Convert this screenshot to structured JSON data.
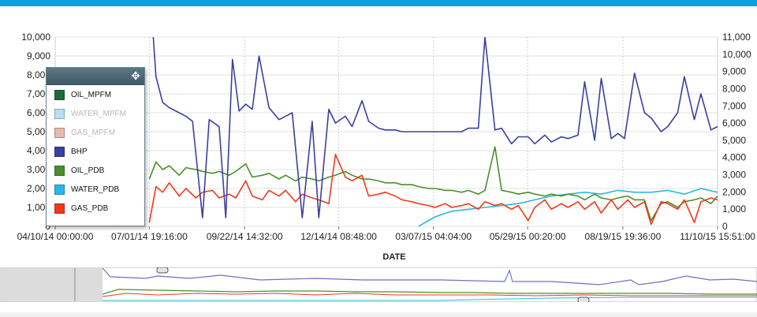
{
  "chart_data": {
    "type": "line",
    "xlabel": "DATE",
    "x_ticks": [
      "04/10/14 00:00:00",
      "07/01/14 19:16:00",
      "09/22/14 14:32:00",
      "12/14/14 08:48:00",
      "03/07/15 04:04:00",
      "05/29/15 00:20:00",
      "08/19/15 19:36:00",
      "11/10/15 15:51:00"
    ],
    "y_left": {
      "ylim": [
        0,
        10000
      ],
      "ticks": [
        "0",
        "1,000",
        "2,000",
        "3,000",
        "4,000",
        "5,000",
        "6,000",
        "7,000",
        "8,000",
        "9,000",
        "10,000"
      ]
    },
    "y_right": {
      "ylim": [
        0,
        11000
      ],
      "ticks": [
        "0",
        "1,000",
        "2,000",
        "3,000",
        "4,000",
        "5,000",
        "6,000",
        "7,000",
        "8,000",
        "9,000",
        "10,000",
        "11,000"
      ]
    },
    "grid": true,
    "legend": {
      "placement": "top-left",
      "items": [
        {
          "name": "OIL_MPFM",
          "color": "#1e6b3a",
          "enabled": true
        },
        {
          "name": "WATER_MPFM",
          "color": "#b7dff2",
          "enabled": false
        },
        {
          "name": "GAS_MPFM",
          "color": "#e8b9b0",
          "enabled": false
        },
        {
          "name": "BHP",
          "color": "#3b3fa0",
          "enabled": true
        },
        {
          "name": "OIL_PDB",
          "color": "#4a8f2a",
          "enabled": true
        },
        {
          "name": "WATER_PDB",
          "color": "#2bb6e6",
          "enabled": true
        },
        {
          "name": "GAS_PDB",
          "color": "#ee3a1c",
          "enabled": true
        }
      ]
    },
    "series": [
      {
        "name": "BHP",
        "axis": "right",
        "color": "#3b3fa0",
        "x": [
          0.39,
          0.4,
          0.41,
          0.43,
          0.45,
          0.5,
          0.52,
          0.55,
          0.57,
          0.6,
          0.62,
          0.64,
          0.66,
          0.68,
          0.7,
          0.72,
          0.75,
          0.78,
          0.8,
          0.82,
          0.85,
          0.88,
          0.9,
          0.93,
          0.95,
          0.98,
          1.0,
          1.03,
          1.05,
          1.08,
          1.1,
          1.13,
          1.15,
          1.18,
          1.2,
          1.22,
          1.25,
          1.28,
          1.3,
          1.33,
          1.35,
          1.38,
          1.4,
          1.43,
          1.45,
          1.48,
          1.5,
          1.53,
          1.55,
          1.58,
          1.6,
          1.63,
          1.65,
          1.68,
          1.7,
          1.73,
          1.75,
          1.78,
          1.8,
          1.82,
          1.85,
          1.88,
          1.9,
          1.93,
          1.95,
          1.98,
          2.0,
          2.03,
          2.05,
          2.08,
          2.1
        ],
        "values": [
          11000,
          11500,
          8700,
          7200,
          6900,
          6400,
          6100,
          500,
          6200,
          5800,
          500,
          9700,
          6700,
          7100,
          6800,
          9900,
          6900,
          6200,
          6400,
          6600,
          500,
          6100,
          500,
          6800,
          6000,
          6400,
          5800,
          7300,
          6100,
          5700,
          5600,
          5600,
          5500,
          5500,
          5500,
          5500,
          5500,
          5500,
          5500,
          5500,
          5700,
          5700,
          11000,
          5600,
          5700,
          4800,
          5200,
          5200,
          4800,
          5300,
          4900,
          5200,
          5100,
          5300,
          8400,
          5000,
          8600,
          5100,
          5400,
          5100,
          8900,
          6600,
          6300,
          5500,
          5800,
          6600,
          8700,
          6200,
          7700,
          5600,
          5800
        ]
      },
      {
        "name": "GAS_PDB",
        "axis": "left",
        "color": "#ee3a1c",
        "x": [
          0.39,
          0.41,
          0.43,
          0.45,
          0.48,
          0.5,
          0.53,
          0.55,
          0.58,
          0.6,
          0.63,
          0.65,
          0.68,
          0.7,
          0.73,
          0.75,
          0.78,
          0.8,
          0.83,
          0.85,
          0.88,
          0.9,
          0.93,
          0.95,
          0.98,
          1.0,
          1.03,
          1.05,
          1.08,
          1.1,
          1.13,
          1.15,
          1.18,
          1.2,
          1.23,
          1.25,
          1.28,
          1.3,
          1.33,
          1.35,
          1.38,
          1.4,
          1.43,
          1.45,
          1.48,
          1.5,
          1.53,
          1.55,
          1.58,
          1.6,
          1.63,
          1.65,
          1.68,
          1.7,
          1.73,
          1.75,
          1.78,
          1.8,
          1.83,
          1.85,
          1.88,
          1.9,
          1.93,
          1.95,
          1.98,
          2.0,
          2.03,
          2.05,
          2.08,
          2.1
        ],
        "values": [
          200,
          2100,
          1800,
          2300,
          1600,
          2000,
          1500,
          1800,
          1900,
          1500,
          1700,
          1500,
          2400,
          1600,
          1400,
          1900,
          1600,
          1900,
          1300,
          1700,
          1500,
          1400,
          1200,
          3800,
          2600,
          2400,
          2700,
          1600,
          1700,
          1800,
          1600,
          1400,
          1300,
          1200,
          1100,
          1000,
          1200,
          1000,
          1100,
          1200,
          900,
          1300,
          1100,
          1200,
          900,
          1100,
          300,
          1000,
          1400,
          900,
          1200,
          1000,
          1300,
          900,
          1300,
          700,
          1400,
          900,
          1400,
          1000,
          1300,
          100,
          1300,
          1200,
          900,
          1400,
          200,
          1300,
          1500,
          1400
        ]
      },
      {
        "name": "OIL_PDB",
        "axis": "left",
        "color": "#4a8f2a",
        "x": [
          0.39,
          0.41,
          0.43,
          0.45,
          0.48,
          0.5,
          0.53,
          0.55,
          0.58,
          0.6,
          0.63,
          0.65,
          0.68,
          0.7,
          0.73,
          0.75,
          0.78,
          0.8,
          0.83,
          0.85,
          0.88,
          0.9,
          0.93,
          0.95,
          0.98,
          1.0,
          1.03,
          1.05,
          1.08,
          1.1,
          1.13,
          1.15,
          1.18,
          1.2,
          1.23,
          1.25,
          1.28,
          1.3,
          1.33,
          1.35,
          1.38,
          1.4,
          1.43,
          1.45,
          1.48,
          1.5,
          1.53,
          1.55,
          1.58,
          1.6,
          1.63,
          1.65,
          1.68,
          1.7,
          1.73,
          1.75,
          1.78,
          1.8,
          1.83,
          1.85,
          1.88,
          1.9,
          1.93,
          1.95,
          1.98,
          2.0,
          2.03,
          2.05,
          2.08,
          2.1
        ],
        "values": [
          2500,
          3400,
          3000,
          3200,
          2700,
          3100,
          3000,
          2900,
          2800,
          2900,
          2700,
          2900,
          3300,
          2600,
          2700,
          2800,
          2500,
          2700,
          2400,
          2600,
          2500,
          2400,
          2600,
          2700,
          2900,
          2700,
          2500,
          2500,
          2400,
          2300,
          2300,
          2200,
          2200,
          2100,
          2000,
          2000,
          1900,
          1900,
          1800,
          1900,
          1700,
          1900,
          4200,
          1900,
          1800,
          1700,
          1800,
          1700,
          1600,
          1700,
          1600,
          1700,
          1600,
          1400,
          1700,
          1500,
          1400,
          1500,
          1600,
          1400,
          1400,
          300,
          1200,
          1300,
          1000,
          1300,
          1400,
          1500,
          1200,
          1600
        ]
      },
      {
        "name": "WATER_PDB",
        "axis": "left",
        "color": "#2bb6e6",
        "x": [
          1.2,
          1.25,
          1.3,
          1.35,
          1.4,
          1.45,
          1.5,
          1.55,
          1.6,
          1.65,
          1.7,
          1.75,
          1.8,
          1.85,
          1.9,
          1.95,
          2.0,
          2.05,
          2.1
        ],
        "values": [
          0,
          500,
          800,
          900,
          1000,
          1100,
          1200,
          1400,
          1600,
          1700,
          1800,
          1700,
          1900,
          1800,
          1800,
          1900,
          1700,
          2000,
          1800
        ]
      }
    ],
    "navigator": {
      "range_handles": [
        "left",
        "right"
      ]
    }
  }
}
